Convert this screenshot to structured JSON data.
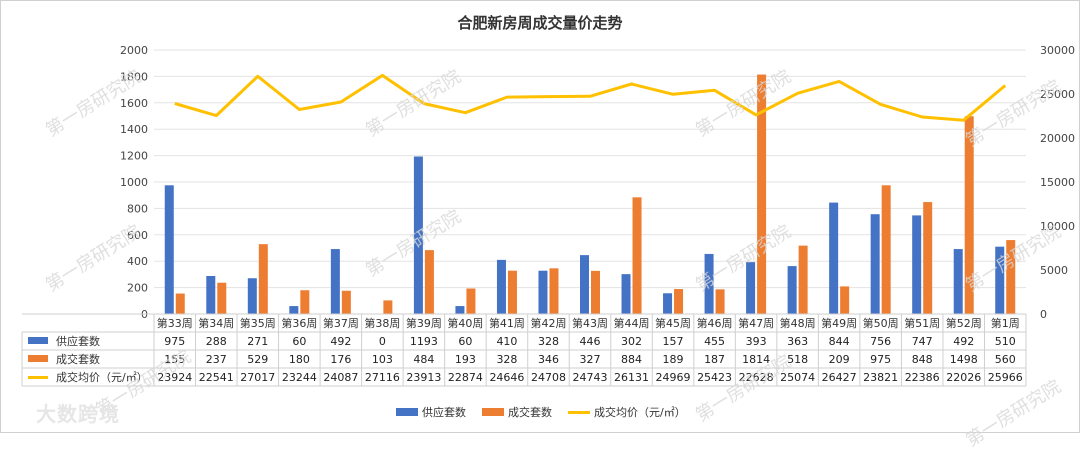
{
  "chart_data": {
    "type": "bar",
    "title": "合肥新房周成交量价走势",
    "categories": [
      "第33周",
      "第34周",
      "第35周",
      "第36周",
      "第37周",
      "第38周",
      "第39周",
      "第40周",
      "第41周",
      "第42周",
      "第43周",
      "第44周",
      "第45周",
      "第46周",
      "第47周",
      "第48周",
      "第49周",
      "第50周",
      "第51周",
      "第52周",
      "第1周"
    ],
    "series": [
      {
        "name": "供应套数",
        "type": "bar",
        "axis": "left",
        "color": "#4472C4",
        "values": [
          975,
          288,
          271,
          60,
          492,
          0,
          1193,
          60,
          410,
          328,
          446,
          302,
          157,
          455,
          393,
          363,
          844,
          756,
          747,
          492,
          510
        ]
      },
      {
        "name": "成交套数",
        "type": "bar",
        "axis": "left",
        "color": "#ED7D31",
        "values": [
          155,
          237,
          529,
          180,
          176,
          103,
          484,
          193,
          328,
          346,
          327,
          884,
          189,
          187,
          1814,
          518,
          209,
          975,
          848,
          1498,
          560
        ]
      },
      {
        "name": "成交均价（元/㎡）",
        "type": "line",
        "axis": "right",
        "color": "#FFC000",
        "values": [
          23924,
          22541,
          27017,
          23244,
          24087,
          27116,
          23913,
          22874,
          24646,
          24708,
          24743,
          26131,
          24969,
          25423,
          22628,
          25074,
          26427,
          23821,
          22386,
          22026,
          25966
        ]
      }
    ],
    "left_axis": {
      "min": 0,
      "max": 2000,
      "step": 200
    },
    "right_axis": {
      "min": 0,
      "max": 30000,
      "step": 5000
    },
    "table_labels": [
      "供应套数",
      "成交套数",
      "成交均价（元/㎡）"
    ],
    "legend": "bottom",
    "grid": true
  },
  "watermark": "第一房研究院",
  "logo": "大数跨境"
}
